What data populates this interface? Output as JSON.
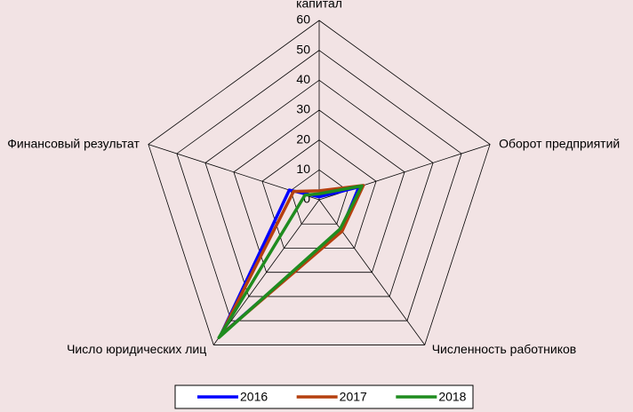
{
  "chart_data": {
    "type": "radar",
    "categories": [
      "капитал",
      "Оборот предприятий",
      "Численность работников",
      "Число юридических лиц",
      "Финансовый результат"
    ],
    "ylim": [
      0,
      60
    ],
    "yticks": [
      0,
      10,
      20,
      30,
      40,
      50,
      60
    ],
    "series": [
      {
        "name": "2016",
        "color": "#0000ff",
        "values": [
          1,
          14,
          12.5,
          56,
          10.5
        ]
      },
      {
        "name": "2017",
        "color": "#b5400f",
        "values": [
          3,
          15.5,
          13,
          56,
          9
        ]
      },
      {
        "name": "2018",
        "color": "#1f8c1f",
        "values": [
          2,
          15,
          12,
          57,
          5
        ]
      }
    ]
  }
}
